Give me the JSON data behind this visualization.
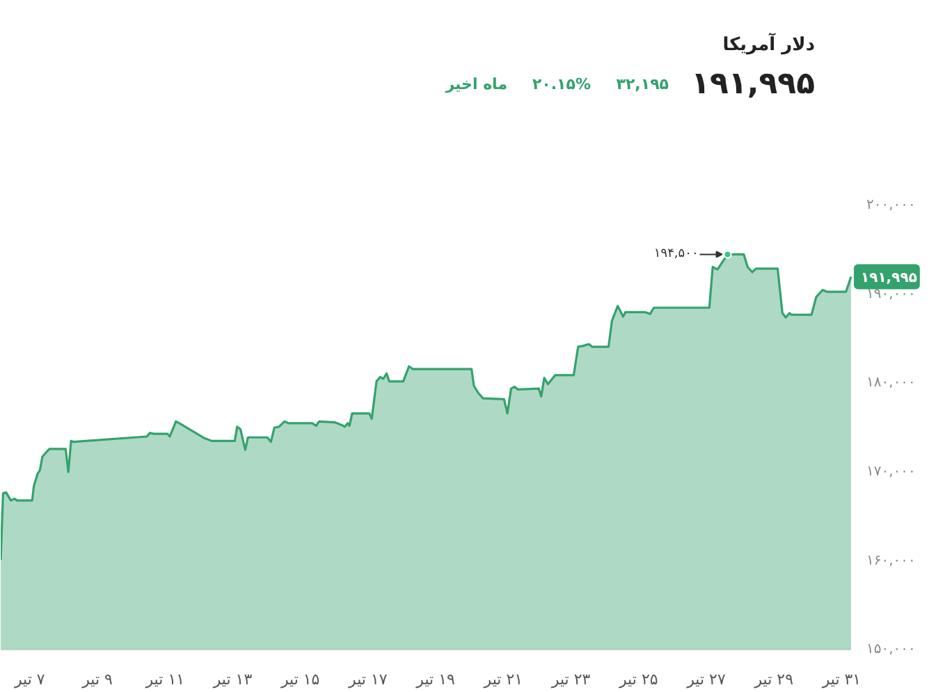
{
  "chart_data": {
    "type": "area",
    "title": "دلار آمریکا",
    "subtitle": "۱۹۱,۹۹۵",
    "annotations": [
      "۳۲,۱۹۵",
      "۲۰.۱۵%",
      "ماه اخیر",
      {
        "text": "۱۹۴,۵۰۰",
        "x": 27.63,
        "y": 194500
      },
      {
        "text": "۱۹۱,۹۹۵",
        "x": 31.28,
        "y": 191995
      }
    ],
    "x": [
      6.14,
      6.21,
      6.3,
      6.44,
      6.55,
      6.62,
      7.07,
      7.12,
      7.23,
      7.3,
      7.37,
      7.48,
      7.58,
      8.06,
      8.14,
      8.22,
      8.3,
      10.46,
      10.55,
      10.66,
      11.07,
      11.14,
      11.32,
      11.42,
      12.17,
      12.38,
      13.06,
      13.13,
      13.23,
      13.37,
      13.45,
      14.02,
      14.13,
      14.23,
      14.37,
      14.53,
      14.64,
      15.35,
      15.47,
      15.55,
      16.01,
      16.22,
      16.31,
      16.4,
      16.45,
      16.53,
      17.04,
      17.11,
      17.25,
      17.36,
      17.45,
      17.55,
      17.63,
      18.04,
      18.21,
      18.32,
      20.06,
      20.13,
      20.26,
      20.4,
      21.02,
      21.12,
      21.23,
      21.33,
      21.43,
      22.05,
      22.12,
      22.21,
      22.32,
      22.53,
      23.08,
      23.21,
      23.35,
      23.53,
      23.63,
      24.11,
      24.21,
      24.38,
      24.45,
      24.54,
      24.61,
      25.2,
      25.34,
      25.45,
      27.09,
      27.19,
      27.33,
      27.47,
      27.63,
      27.74,
      28.11,
      28.22,
      28.36,
      28.47,
      29.11,
      29.25,
      29.35,
      29.46,
      29.52,
      30.11,
      30.25,
      30.44,
      30.56,
      31.13,
      31.28
    ],
    "series": [
      {
        "color": "#34a26d",
        "values": [
          160100,
          167600,
          167700,
          166800,
          167000,
          166800,
          166800,
          168400,
          169800,
          170200,
          171700,
          172200,
          172600,
          172600,
          170000,
          173500,
          173400,
          174000,
          174400,
          174300,
          174300,
          174000,
          175700,
          175500,
          173800,
          173500,
          173500,
          175100,
          174800,
          172500,
          173900,
          173900,
          173400,
          175000,
          175100,
          175700,
          175500,
          175500,
          175200,
          175700,
          175600,
          175300,
          175100,
          175500,
          175200,
          176600,
          176600,
          176000,
          180200,
          180700,
          180500,
          181100,
          180200,
          180200,
          181900,
          181600,
          181600,
          179700,
          178900,
          178300,
          178200,
          176600,
          179400,
          179600,
          179300,
          179400,
          178500,
          180600,
          179900,
          180900,
          180900,
          184100,
          184200,
          184400,
          184100,
          184100,
          187000,
          188700,
          188200,
          187500,
          188000,
          188000,
          187800,
          188500,
          188500,
          193100,
          192800,
          193600,
          194500,
          194500,
          194500,
          193100,
          192500,
          192900,
          192900,
          187900,
          187400,
          187900,
          187700,
          187700,
          189700,
          190500,
          190300,
          190300,
          191995
        ]
      }
    ],
    "xlim": [
      6.14,
      31.28
    ],
    "ylim": [
      150000,
      200000
    ],
    "xticks": [
      {
        "value": 7,
        "label": "۷ تیر"
      },
      {
        "value": 9,
        "label": "۹ تیر"
      },
      {
        "value": 11,
        "label": "۱۱ تیر"
      },
      {
        "value": 13,
        "label": "۱۳ تیر"
      },
      {
        "value": 15,
        "label": "۱۵ تیر"
      },
      {
        "value": 17,
        "label": "۱۷ تیر"
      },
      {
        "value": 19,
        "label": "۱۹ تیر"
      },
      {
        "value": 21,
        "label": "۲۱ تیر"
      },
      {
        "value": 23,
        "label": "۲۳ تیر"
      },
      {
        "value": 25,
        "label": "۲۵ تیر"
      },
      {
        "value": 27,
        "label": "۲۷ تیر"
      },
      {
        "value": 29,
        "label": "۲۹ تیر"
      },
      {
        "value": 31,
        "label": "۳۱ تیر"
      }
    ],
    "yticks": [
      {
        "value": 150000,
        "label": "۱۵۰,۰۰۰"
      },
      {
        "value": 160000,
        "label": "۱۶۰,۰۰۰"
      },
      {
        "value": 170000,
        "label": "۱۷۰,۰۰۰"
      },
      {
        "value": 180000,
        "label": "۱۸۰,۰۰۰"
      },
      {
        "value": 190000,
        "label": "۱۹۰,۰۰۰"
      },
      {
        "value": 200000,
        "label": "۲۰۰,۰۰۰"
      }
    ]
  }
}
